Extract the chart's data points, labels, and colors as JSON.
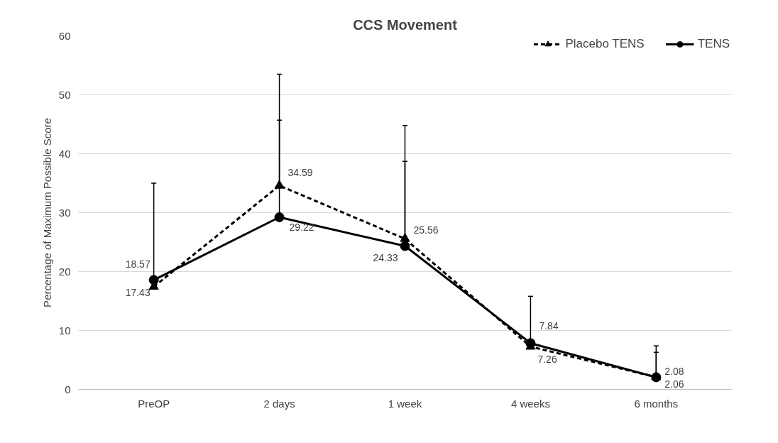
{
  "chart_data": {
    "type": "line",
    "title": "CCS Movement",
    "ylabel": "Percentage of Maximum Possible Score",
    "categories": [
      "PreOP",
      "2 days",
      "1 week",
      "4 weeks",
      "6 months"
    ],
    "series": [
      {
        "name": "Placebo TENS",
        "color": "#000000",
        "line_style": "dashed",
        "marker": "triangle",
        "values": [
          17.43,
          34.59,
          25.56,
          7.26,
          2.08
        ],
        "errors": [
          null,
          [
            34.59,
            53.5
          ],
          [
            25.56,
            44.8
          ],
          null,
          [
            2.08,
            7.4
          ]
        ]
      },
      {
        "name": "TENS",
        "color": "#000000",
        "line_style": "solid",
        "marker": "circle",
        "values": [
          18.57,
          29.22,
          24.33,
          7.84,
          2.06
        ],
        "errors": [
          [
            18.57,
            35.0
          ],
          [
            29.22,
            45.7
          ],
          [
            24.33,
            38.7
          ],
          [
            7.84,
            15.8
          ],
          [
            2.06,
            6.3
          ]
        ]
      }
    ],
    "ylim": [
      0,
      60
    ],
    "yticks": [
      0,
      10,
      20,
      30,
      40,
      50,
      60
    ],
    "grid": "y",
    "legend": "top right",
    "data_labels": true
  }
}
